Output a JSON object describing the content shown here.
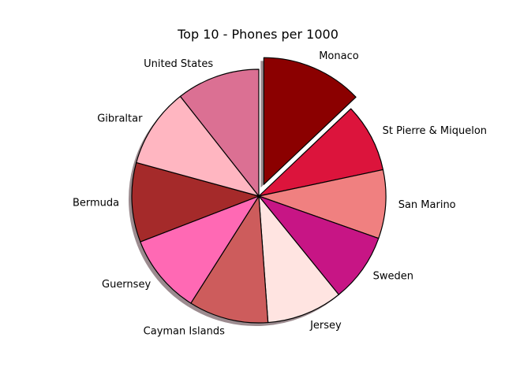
{
  "chart_data": {
    "type": "pie",
    "title": "Top 10 - Phones per 1000",
    "start_angle_deg": 90,
    "direction": "clockwise",
    "shadow": true,
    "slices": [
      {
        "label": "Monaco",
        "value": 1.4,
        "color": "#8B0000",
        "explode": true
      },
      {
        "label": "St Pierre & Miquelon",
        "value": 0.95,
        "color": "#DC143C",
        "explode": false
      },
      {
        "label": "San Marino",
        "value": 0.95,
        "color": "#F08080",
        "explode": false
      },
      {
        "label": "Sweden",
        "value": 0.95,
        "color": "#C71585",
        "explode": false
      },
      {
        "label": "Jersey",
        "value": 1.05,
        "color": "#FFE4E1",
        "explode": false
      },
      {
        "label": "Cayman Islands",
        "value": 1.1,
        "color": "#CD5C5C",
        "explode": false
      },
      {
        "label": "Guernsey",
        "value": 1.1,
        "color": "#FF69B4",
        "explode": false
      },
      {
        "label": "Bermuda",
        "value": 1.1,
        "color": "#A52A2A",
        "explode": false
      },
      {
        "label": "Gibraltar",
        "value": 1.1,
        "color": "#FFB6C1",
        "explode": false
      },
      {
        "label": "United States",
        "value": 1.15,
        "color": "#DB7093",
        "explode": false
      }
    ]
  }
}
